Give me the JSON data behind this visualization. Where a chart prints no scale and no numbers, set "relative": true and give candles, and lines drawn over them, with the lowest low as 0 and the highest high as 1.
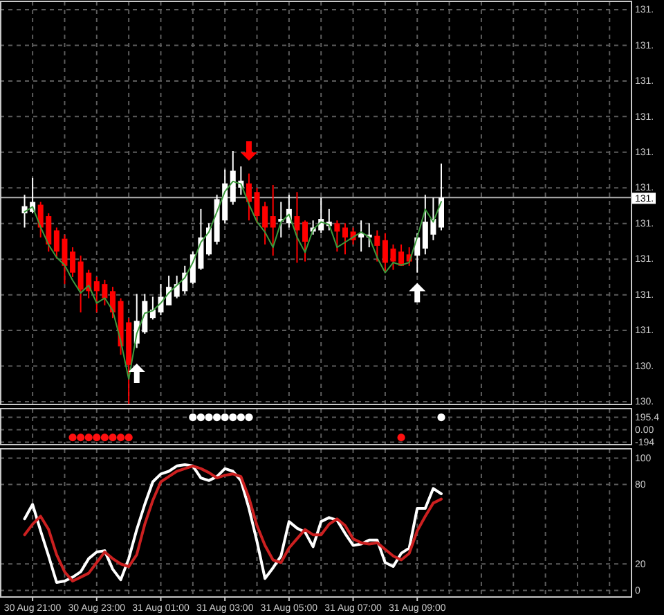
{
  "chart_data": [
    {
      "type": "candlestick",
      "relative": true,
      "grid": true,
      "tick_labels": false,
      "categories": [
        null,
        null,
        null,
        null,
        null,
        null,
        null,
        null,
        null,
        null,
        null,
        null,
        null,
        null,
        null,
        null,
        null,
        null,
        null,
        null,
        null,
        null,
        null,
        null,
        null,
        null,
        null,
        null,
        null,
        null,
        null,
        null,
        null,
        null,
        null,
        null,
        null,
        null,
        null,
        null,
        null,
        null,
        null,
        null,
        null,
        null,
        null,
        null,
        null,
        null,
        null,
        null,
        null,
        null,
        null,
        null,
        null,
        null,
        null,
        null,
        null,
        null,
        null,
        null,
        null,
        null,
        null,
        null,
        null,
        null,
        null,
        null,
        null,
        null,
        null,
        null
      ],
      "ohlc": [
        [
          0.754,
          0.827,
          0.698,
          0.782
        ],
        [
          0.76,
          0.894,
          0.754,
          0.799
        ],
        [
          0.788,
          0.799,
          0.659,
          0.698
        ],
        [
          0.743,
          0.754,
          0.603,
          0.631
        ],
        [
          0.687,
          0.698,
          0.575,
          0.603
        ],
        [
          0.654,
          0.67,
          0.475,
          0.547
        ],
        [
          0.603,
          0.62,
          0.503,
          0.52
        ],
        [
          0.564,
          0.587,
          0.363,
          0.453
        ],
        [
          0.52,
          0.531,
          0.419,
          0.447
        ],
        [
          0.486,
          0.503,
          0.363,
          0.447
        ],
        [
          0.475,
          0.492,
          0.391,
          0.419
        ],
        [
          0.447,
          0.464,
          0.341,
          0.363
        ],
        [
          0.408,
          0.419,
          0.196,
          0.229
        ],
        [
          0.324,
          0.341,
          0,
          0.156
        ],
        [
          0.24,
          0.436,
          0.223,
          0.33
        ],
        [
          0.285,
          0.436,
          0.279,
          0.408
        ],
        [
          0.341,
          0.425,
          0.335,
          0.374
        ],
        [
          0.363,
          0.475,
          0.352,
          0.425
        ],
        [
          0.391,
          0.508,
          0.391,
          0.464
        ],
        [
          0.425,
          0.508,
          0.419,
          0.475
        ],
        [
          0.447,
          0.547,
          0.436,
          0.52
        ],
        [
          0.48,
          0.603,
          0.475,
          0.592
        ],
        [
          0.536,
          0.771,
          0.531,
          0.659
        ],
        [
          0.592,
          0.715,
          0.587,
          0.698
        ],
        [
          0.642,
          0.827,
          0.631,
          0.81
        ],
        [
          0.726,
          0.927,
          0.715,
          0.872
        ],
        [
          0.799,
          1,
          0.788,
          0.922
        ],
        [
          0.855,
          0.939,
          0.827,
          0.883
        ],
        [
          0.872,
          0.911,
          0.726,
          0.799
        ],
        [
          0.838,
          0.855,
          0.715,
          0.743
        ],
        [
          0.782,
          0.799,
          0.631,
          0.698
        ],
        [
          0.743,
          0.866,
          0.587,
          0.698
        ],
        [
          0.721,
          0.799,
          0.659,
          0.732
        ],
        [
          0.715,
          0.827,
          0.698,
          0.771
        ],
        [
          0.743,
          0.838,
          0.559,
          0.687
        ],
        [
          0.721,
          0.726,
          0.564,
          0.642
        ],
        [
          0.682,
          0.726,
          0.67,
          0.698
        ],
        [
          0.687,
          0.816,
          0.676,
          0.732
        ],
        [
          0.704,
          0.771,
          0.687,
          0.721
        ],
        [
          0.715,
          0.726,
          0.603,
          0.682
        ],
        [
          0.698,
          0.715,
          0.592,
          0.659
        ],
        [
          0.682,
          0.698,
          0.631,
          0.648
        ],
        [
          0.659,
          0.726,
          0.603,
          0.676
        ],
        [
          0.659,
          0.715,
          0.62,
          0.67
        ],
        [
          0.665,
          0.687,
          0.564,
          0.626
        ],
        [
          0.648,
          0.676,
          0.52,
          0.559
        ],
        [
          0.615,
          0.631,
          0.531,
          0.564
        ],
        [
          0.603,
          0.631,
          0.547,
          0.547
        ],
        [
          0.592,
          0.62,
          0.547,
          0.564
        ],
        [
          0.587,
          0.676,
          0.52,
          0.659
        ],
        [
          0.615,
          0.827,
          0.592,
          0.721
        ],
        [
          0.67,
          0.816,
          0.648,
          0.732
        ],
        [
          0.698,
          0.95,
          0.687,
          0.816
        ],
        null,
        null,
        null,
        null,
        null,
        null,
        null,
        null,
        null,
        null,
        null,
        null,
        null,
        null,
        null,
        null,
        null,
        null,
        null,
        null,
        null,
        null,
        null
      ],
      "colors": [
        "#ffffff",
        "#ffffff",
        "#ff0000",
        "#ff0000",
        "#ff0000",
        "#ff0000",
        "#ff0000",
        "#ff0000",
        "#ff0000",
        "#ff0000",
        "#ff0000",
        "#ff0000",
        "#ff0000",
        "#ff0000",
        "#ffffff",
        "#ffffff",
        "#ffffff",
        "#ffffff",
        "#ffffff",
        "#ffffff",
        "#ffffff",
        "#ffffff",
        "#ffffff",
        "#ffffff",
        "#ffffff",
        "#ffffff",
        "#ffffff",
        "#ffffff",
        "#ff0000",
        "#ff0000",
        "#ff0000",
        "#ff0000",
        "#ffffff",
        "#ffffff",
        "#ff0000",
        "#ff0000",
        "#ffffff",
        "#ffffff",
        "#ffffff",
        "#ff0000",
        "#ff0000",
        "#ff0000",
        "#ffffff",
        "#ffffff",
        "#ff0000",
        "#ff0000",
        "#ff0000",
        "#ff0000",
        "#ff0000",
        "#ffffff",
        "#ffffff",
        "#ffffff",
        "#ffffff",
        null,
        null,
        null,
        null,
        null,
        null,
        null,
        null,
        null,
        null,
        null,
        null,
        null,
        null,
        null,
        null,
        null,
        null,
        null,
        null,
        null,
        null,
        null
      ],
      "series": [
        {
          "type": "line",
          "color": "#3c9a3c",
          "values": [
            0.76,
            0.78,
            0.7,
            0.63,
            0.58,
            0.55,
            0.49,
            0.44,
            0.47,
            0.4,
            0.42,
            0.37,
            0.25,
            0.1,
            0.28,
            0.36,
            0.37,
            0.4,
            0.44,
            0.47,
            0.5,
            0.56,
            0.64,
            0.68,
            0.76,
            0.84,
            0.88,
            0.87,
            0.79,
            0.72,
            0.68,
            0.62,
            0.72,
            0.75,
            0.66,
            0.6,
            0.69,
            0.72,
            0.71,
            0.62,
            0.64,
            0.66,
            0.68,
            0.66,
            0.58,
            0.52,
            0.56,
            0.55,
            0.56,
            0.66,
            0.77,
            0.72,
            0.8,
            null,
            null,
            null,
            null,
            null,
            null,
            null,
            null,
            null,
            null,
            null,
            null,
            null,
            null,
            null,
            null,
            null,
            null,
            null,
            null,
            null,
            null,
            null
          ]
        },
        {
          "type": "scatter",
          "color": "#ffffff",
          "values": [
            null,
            null,
            null,
            null,
            null,
            null,
            null,
            null,
            null,
            null,
            null,
            null,
            null,
            null,
            0.123,
            null,
            null,
            null,
            null,
            null,
            null,
            null,
            null,
            null,
            null,
            null,
            null,
            null,
            null,
            null,
            null,
            null,
            null,
            null,
            null,
            null,
            null,
            null,
            null,
            null,
            null,
            null,
            null,
            null,
            null,
            null,
            null,
            null,
            null,
            0.441,
            null,
            null,
            null,
            null,
            null,
            null,
            null,
            null,
            null,
            null,
            null,
            null,
            null,
            null,
            null,
            null,
            null,
            null,
            null,
            null,
            null,
            null,
            null,
            null,
            null,
            null
          ]
        },
        {
          "type": "scatter",
          "color": "#ff0000",
          "values": [
            null,
            null,
            null,
            null,
            null,
            null,
            null,
            null,
            null,
            null,
            null,
            null,
            null,
            null,
            null,
            null,
            null,
            null,
            null,
            null,
            null,
            null,
            null,
            null,
            null,
            null,
            null,
            null,
            1,
            null,
            null,
            null,
            null,
            null,
            null,
            null,
            null,
            null,
            null,
            null,
            null,
            null,
            null,
            null,
            null,
            null,
            null,
            null,
            null,
            null,
            null,
            null,
            null,
            null,
            null,
            null,
            null,
            null,
            null,
            null,
            null,
            null,
            null,
            null,
            null,
            null,
            null,
            null,
            null,
            null,
            null,
            null,
            null,
            null,
            null,
            null
          ]
        }
      ],
      "ref_lines": [
        {
          "axis": "y",
          "value": 0.816,
          "color": "#b0b0b0"
        }
      ],
      "annotations": [
        "131.",
        "131.",
        "131.",
        "131.",
        "131.",
        "131.",
        "131.",
        "131.",
        "131.",
        "131.",
        "130.",
        "130.",
        "131."
      ]
    },
    {
      "type": "scatter",
      "grid": true,
      "tick_labels": "y",
      "categories": [
        null,
        null,
        null,
        null,
        null,
        null,
        null,
        null,
        null,
        null,
        null,
        null,
        null,
        null,
        null,
        null,
        null,
        null,
        null,
        null,
        null,
        null,
        null,
        null,
        null,
        null,
        null,
        null,
        null,
        null,
        null,
        null,
        null,
        null,
        null,
        null,
        null,
        null,
        null,
        null,
        null,
        null,
        null,
        null,
        null,
        null,
        null,
        null,
        null,
        null,
        null,
        null,
        null,
        null,
        null,
        null,
        null,
        null,
        null,
        null,
        null,
        null,
        null,
        null,
        null,
        null,
        null,
        null,
        null,
        null,
        null,
        null,
        null,
        null,
        null,
        null
      ],
      "series": [
        {
          "color": "#ffffff",
          "values": [
            null,
            null,
            null,
            null,
            null,
            null,
            null,
            null,
            null,
            null,
            null,
            null,
            null,
            null,
            null,
            null,
            null,
            null,
            null,
            null,
            null,
            195,
            195,
            195,
            195,
            195,
            195,
            195,
            195,
            null,
            null,
            null,
            null,
            null,
            null,
            null,
            null,
            null,
            null,
            null,
            null,
            null,
            null,
            null,
            null,
            null,
            null,
            null,
            null,
            null,
            null,
            null,
            195,
            null,
            null,
            null,
            null,
            null,
            null,
            null,
            null,
            null,
            null,
            null,
            null,
            null,
            null,
            null,
            null,
            null,
            null,
            null,
            null,
            null,
            null,
            null
          ]
        },
        {
          "color": "#ff1010",
          "values": [
            null,
            null,
            null,
            null,
            null,
            null,
            -120,
            -120,
            -120,
            -120,
            -120,
            -120,
            -120,
            -120,
            null,
            null,
            null,
            null,
            null,
            null,
            null,
            null,
            null,
            null,
            null,
            null,
            null,
            null,
            null,
            null,
            null,
            null,
            null,
            null,
            null,
            null,
            null,
            null,
            null,
            null,
            null,
            null,
            null,
            null,
            null,
            null,
            null,
            -120,
            null,
            null,
            null,
            null,
            null,
            null,
            null,
            null,
            null,
            null,
            null,
            null,
            null,
            null,
            null,
            null,
            null,
            null,
            null,
            null,
            null,
            null,
            null,
            null,
            null,
            null,
            null,
            null
          ]
        }
      ],
      "ylim": [
        -232,
        331
      ],
      "yticks": [
        195.4,
        {
          "value": 0,
          "label": "0.00"
        },
        -194
      ]
    },
    {
      "type": "line",
      "grid": true,
      "categories": [
        null,
        "30 Aug 21:00",
        null,
        null,
        null,
        null,
        null,
        null,
        null,
        "30 Aug 23:00",
        null,
        null,
        null,
        null,
        null,
        null,
        null,
        "31 Aug 01:00",
        null,
        null,
        null,
        null,
        null,
        null,
        null,
        "31 Aug 03:00",
        null,
        null,
        null,
        null,
        null,
        null,
        null,
        "31 Aug 05:00",
        null,
        null,
        null,
        null,
        null,
        null,
        null,
        "31 Aug 07:00",
        null,
        null,
        null,
        null,
        null,
        null,
        null,
        "31 Aug 09:00",
        null,
        null,
        null,
        null,
        null,
        null,
        null,
        null,
        null,
        null,
        null,
        null,
        null,
        null,
        null,
        null,
        null,
        null,
        null,
        null,
        null,
        null,
        null,
        null,
        null,
        null
      ],
      "series": [
        {
          "color": "#ffffff",
          "values": [
            54,
            65,
            45,
            26,
            6,
            7,
            10,
            14,
            24,
            29,
            30,
            16,
            8,
            24,
            46,
            65,
            82,
            88,
            90,
            94,
            95,
            94,
            85,
            83,
            86,
            92,
            90,
            83,
            62,
            37,
            9,
            17,
            26,
            52,
            47,
            44,
            33,
            52,
            55,
            53,
            43,
            34,
            35,
            38,
            38,
            21,
            18,
            28,
            32,
            62,
            62,
            77,
            73,
            null,
            null,
            null,
            null,
            null,
            null,
            null,
            null,
            null,
            null,
            null,
            null,
            null,
            null,
            null,
            null,
            null,
            null,
            null,
            null,
            null,
            null,
            null
          ]
        },
        {
          "color": "#cc2020",
          "values": [
            42,
            50,
            56,
            46,
            27,
            14,
            7,
            10,
            13,
            21,
            29,
            24,
            20,
            18,
            27,
            50,
            68,
            82,
            86,
            90,
            92,
            94,
            92,
            89,
            85,
            87,
            88,
            86,
            70,
            49,
            34,
            23,
            21,
            32,
            39,
            46,
            42,
            42,
            50,
            54,
            49,
            39,
            36,
            35,
            36,
            31,
            26,
            23,
            28,
            45,
            56,
            66,
            69,
            null,
            null,
            null,
            null,
            null,
            null,
            null,
            null,
            null,
            null,
            null,
            null,
            null,
            null,
            null,
            null,
            null,
            null,
            null,
            null,
            null,
            null,
            null
          ]
        }
      ],
      "ylim": [
        -5,
        107
      ],
      "yticks": [
        100,
        80,
        20,
        0
      ]
    }
  ]
}
